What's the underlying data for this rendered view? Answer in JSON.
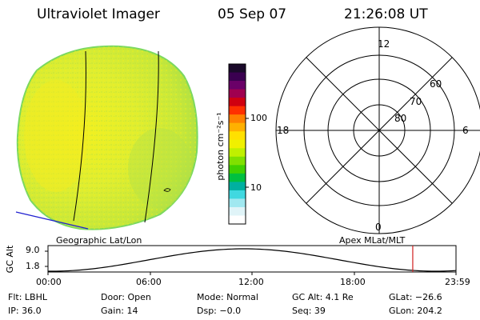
{
  "header": {
    "instrument": "Ultraviolet Imager",
    "date": "05 Sep 07",
    "time": "21:26:08 UT"
  },
  "colorbar": {
    "unit_label": "photon cm⁻²s⁻¹",
    "ticks": [
      "100",
      "10"
    ],
    "colors": [
      "#1a0a2a",
      "#3a0050",
      "#6a0068",
      "#a00050",
      "#d00010",
      "#ff3000",
      "#ff8000",
      "#ffb000",
      "#ffe000",
      "#f0f000",
      "#c0f000",
      "#80e000",
      "#40d000",
      "#00c040",
      "#00b0a0",
      "#40d8e0",
      "#a0e8f0",
      "#e0f4f8",
      "#ffffff"
    ]
  },
  "polar_plot": {
    "labels": {
      "top": "12",
      "left": "18",
      "right": "6",
      "bottom": "0"
    },
    "lat_labels": [
      "60",
      "70",
      "80"
    ]
  },
  "timeline": {
    "left_caption": "Geographic Lat/Lon",
    "right_caption": "Apex MLat/MLT",
    "y_axis_label": "GC Alt",
    "y_ticks": [
      "9.0",
      "1.8"
    ],
    "x_ticks": [
      "00:00",
      "06:00",
      "12:00",
      "18:00",
      "23:59"
    ],
    "marker_time_fraction": 0.894
  },
  "footer": {
    "flt": "Flt: LBHL",
    "door": "Door: Open",
    "mode": "Mode: Normal",
    "gc_alt": "GC Alt: 4.1 Re",
    "glat": "GLat: −26.6",
    "ip": "IP: 36.0",
    "gain": "Gain: 14",
    "dsp": "Dsp:    −0.0",
    "seq": "Seq: 39",
    "glon": "GLon: 204.2"
  }
}
